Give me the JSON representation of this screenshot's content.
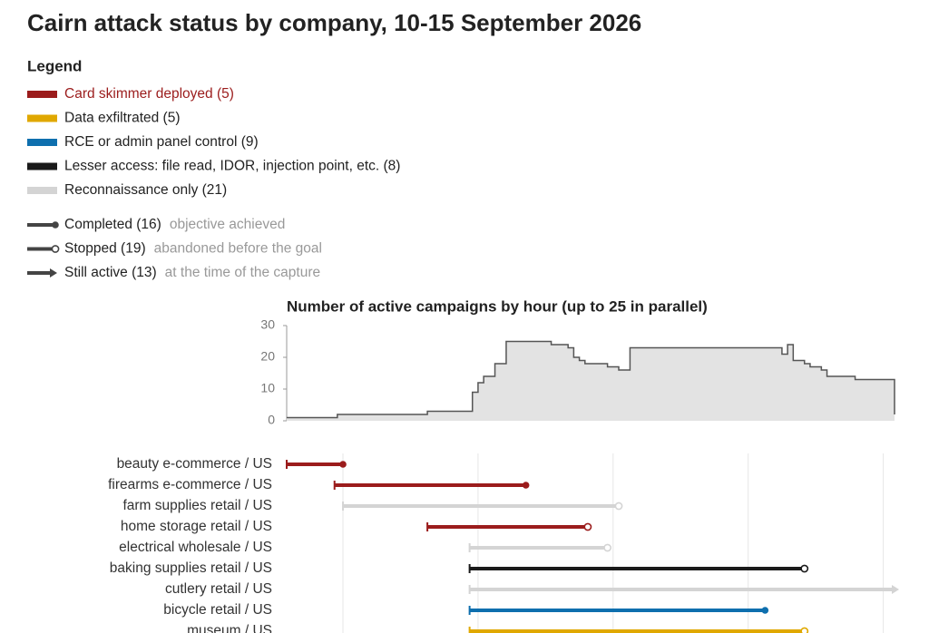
{
  "title": "Cairn attack status by company, 10-15 September 2026",
  "legend": {
    "title": "Legend",
    "categories": [
      {
        "label": "Card skimmer deployed (5)",
        "color": "#9b1c1c",
        "text_color": "#9b1c1c"
      },
      {
        "label": "Data exfiltrated (5)",
        "color": "#e0a800"
      },
      {
        "label": "RCE or admin panel control (9)",
        "color": "#0e6fae"
      },
      {
        "label": "Lesser access: file read, IDOR, injection point, etc. (8)",
        "color": "#1a1a1a"
      },
      {
        "label": "Reconnaissance only (21)",
        "color": "#d4d4d4"
      }
    ],
    "statuses": [
      {
        "label": "Completed (16)",
        "note": "objective achieved",
        "marker": "dot"
      },
      {
        "label": "Stopped (19)",
        "note": "abandoned before the goal",
        "marker": "circle"
      },
      {
        "label": "Still active (13)",
        "note": "at the time of the capture",
        "marker": "arrow"
      }
    ]
  },
  "chart_data": [
    {
      "type": "step-area",
      "title": "Number of active campaigns by hour (up to 25 in parallel)",
      "x": [
        0,
        9,
        25,
        33,
        34,
        35,
        37,
        39,
        47,
        50,
        51,
        52,
        53,
        57,
        59,
        61,
        88,
        89,
        90,
        92,
        93,
        95,
        96,
        101,
        108
      ],
      "values": [
        1,
        2,
        3,
        9,
        12,
        14,
        18,
        25,
        24,
        23,
        20,
        19,
        18,
        17,
        16,
        23,
        21,
        24,
        19,
        18,
        17,
        16,
        14,
        13,
        2
      ],
      "xlim": [
        0,
        108
      ],
      "ylim": [
        0,
        30
      ],
      "yticks": [
        0,
        10,
        20,
        30
      ],
      "color": "#e3e3e3",
      "line_color": "#555555"
    },
    {
      "type": "timeline",
      "xlim": [
        0,
        108
      ],
      "xticks": [
        10,
        34,
        58,
        82,
        106
      ],
      "grid": true,
      "rows": [
        {
          "label": "beauty e-commerce / US",
          "start": 0,
          "end": 10,
          "color": "#9b1c1c",
          "marker": "dot"
        },
        {
          "label": "firearms e-commerce / US",
          "start": 8.5,
          "end": 42.5,
          "color": "#9b1c1c",
          "marker": "dot"
        },
        {
          "label": "farm supplies retail / US",
          "start": 10,
          "end": 59,
          "color": "#d4d4d4",
          "marker": "circle"
        },
        {
          "label": "home storage retail / US",
          "start": 25,
          "end": 53.5,
          "color": "#9b1c1c",
          "marker": "circle"
        },
        {
          "label": "electrical wholesale / US",
          "start": 32.5,
          "end": 57,
          "color": "#d4d4d4",
          "marker": "circle"
        },
        {
          "label": "baking supplies retail / US",
          "start": 32.5,
          "end": 92,
          "color": "#1a1a1a",
          "marker": "circle"
        },
        {
          "label": "cutlery retail / US",
          "start": 32.5,
          "end": 108,
          "color": "#d4d4d4",
          "marker": "arrow"
        },
        {
          "label": "bicycle retail / US",
          "start": 32.5,
          "end": 85,
          "color": "#0e6fae",
          "marker": "dot"
        },
        {
          "label": "museum / US",
          "start": 32.5,
          "end": 92,
          "color": "#e0a800",
          "marker": "circle"
        }
      ]
    }
  ]
}
